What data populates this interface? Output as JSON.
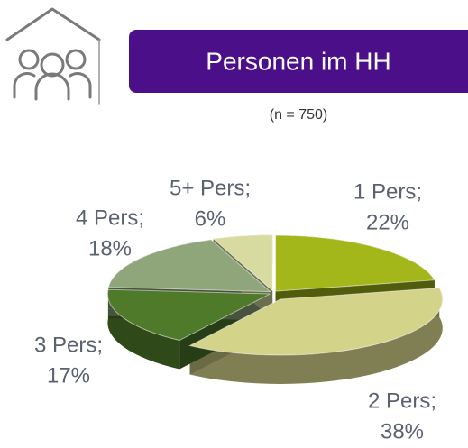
{
  "chart_data": {
    "type": "pie",
    "title": "Personen im HH",
    "subtitle": "(n = 750)",
    "categories": [
      "1 Pers;",
      "2 Pers;",
      "3 Pers;",
      "4 Pers;",
      "5+ Pers;"
    ],
    "values": [
      22,
      38,
      17,
      18,
      6
    ],
    "value_labels": [
      "22%",
      "38%",
      "17%",
      "18%",
      "6%"
    ],
    "colors": [
      "#a4b71a",
      "#d3d48a",
      "#4e7a2a",
      "#8fa67a",
      "#d7dba0"
    ]
  }
}
